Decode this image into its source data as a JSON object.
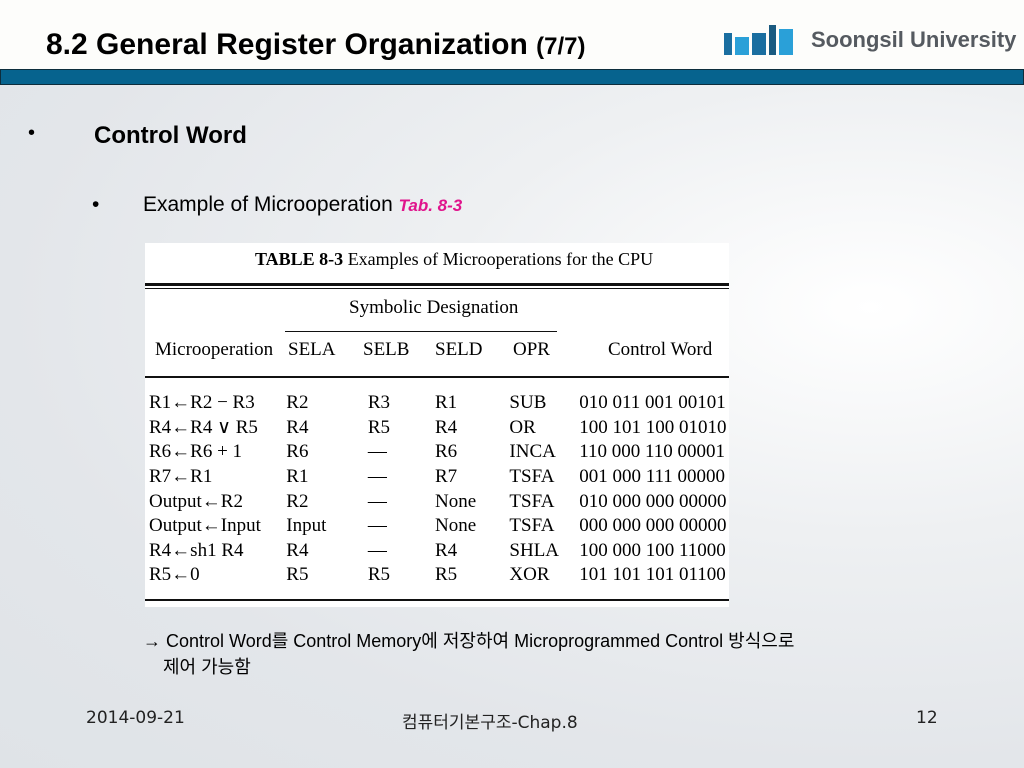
{
  "header": {
    "title": "8.2  General Register Organization",
    "title_suffix": "(7/7)",
    "logo_text": "Soongsil University",
    "bar_color": "#06638e"
  },
  "content": {
    "bullet1": "Control Word",
    "bullet2": "Example of Microoperation",
    "bullet2_ref": "Tab. 8-3",
    "bullet_glyph": "•",
    "table": {
      "caption_label": "TABLE 8-3",
      "caption": "Examples of Microoperations for the CPU",
      "group_header": "Symbolic Designation",
      "columns": [
        "Microoperation",
        "SELA",
        "SELB",
        "SELD",
        "OPR",
        "Control Word"
      ],
      "rows": [
        [
          "R1←R2 − R3",
          "R2",
          "R3",
          "R1",
          "SUB",
          "010 011 001 00101"
        ],
        [
          "R4←R4 ∨ R5",
          "R4",
          "R5",
          "R4",
          "OR",
          "100 101 100 01010"
        ],
        [
          "R6←R6 + 1",
          "R6",
          "—",
          "R6",
          "INCA",
          "110 000 110 00001"
        ],
        [
          "R7←R1",
          "R1",
          "—",
          "R7",
          "TSFA",
          "001 000 111 00000"
        ],
        [
          "Output←R2",
          "R2",
          "—",
          "None",
          "TSFA",
          "010 000 000 00000"
        ],
        [
          "Output←Input",
          "Input",
          "—",
          "None",
          "TSFA",
          "000 000 000 00000"
        ],
        [
          "R4←sh1 R4",
          "R4",
          "—",
          "R4",
          "SHLA",
          "100 000 100 11000"
        ],
        [
          "R5←0",
          "R5",
          "R5",
          "R5",
          "XOR",
          "101 101 101 01100"
        ]
      ]
    },
    "note_line1": "→ Control Word를 Control Memory에 저장하여 Microprogrammed Control 방식으로",
    "note_line2": "제어 가능함"
  },
  "footer": {
    "date": "2014-09-21",
    "course": "컴퓨터기본구조-Chap.8",
    "page": "12"
  }
}
